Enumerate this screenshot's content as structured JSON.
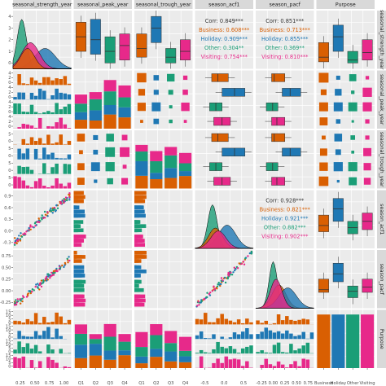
{
  "chart_data": {
    "type": "scatter_matrix",
    "variables": [
      "seasonal_strength_year",
      "seasonal_peak_year",
      "seasonal_trough_year",
      "season_acf1",
      "season_pacf",
      "Purpose"
    ],
    "groups": [
      "Business",
      "Holiday",
      "Other",
      "Visiting"
    ],
    "colors": {
      "Business": "#d95f02",
      "Holiday": "#1f78b4",
      "Other": "#1b9e77",
      "Visiting": "#e7298a"
    },
    "x_ticks": {
      "seasonal_strength_year": [
        "0.25",
        "0.50",
        "0.75",
        "1.00"
      ],
      "seasonal_peak_year": [
        "Q1",
        "Q2",
        "Q3",
        "Q4"
      ],
      "seasonal_trough_year": [
        "Q1",
        "Q2",
        "Q3",
        "Q4"
      ],
      "season_acf1": [
        "-0.5",
        "0.0",
        "0.5"
      ],
      "season_pacf": [
        "-0.25",
        "0.00",
        "0.25",
        "0.50",
        "0.75"
      ],
      "Purpose": [
        "Business",
        "Holiday",
        "Other",
        "Visiting"
      ]
    },
    "y_ticks": {
      "seasonal_strength_year": [
        "4",
        "3",
        "2",
        "1",
        "0"
      ],
      "seasonal_peak_year": [
        "4",
        "2",
        "0",
        "4",
        "2",
        "0",
        "4",
        "2",
        "0",
        "4",
        "2",
        "0"
      ],
      "seasonal_trough_year": [
        "5",
        "0",
        "5",
        "0",
        "5",
        "0",
        "5",
        "0"
      ],
      "season_acf1": [
        "0.9",
        "0.6",
        "0.3",
        "0.0",
        "-0.3"
      ],
      "season_pacf": [
        "0.75",
        "0.50",
        "0.25",
        "0.00",
        "-0.25"
      ],
      "Purpose": [
        "15",
        "10",
        "5",
        "0",
        "15",
        "10",
        "5",
        "0",
        "15",
        "10",
        "5",
        "0",
        "15",
        "10",
        "5",
        "0"
      ]
    },
    "correlations": [
      {
        "row": 0,
        "col": 3,
        "values": [
          {
            "label": "Corr: 0.849***",
            "group": "Corr"
          },
          {
            "label": "Business: 0.608***",
            "group": "Business"
          },
          {
            "label": "Holiday: 0.909***",
            "group": "Holiday"
          },
          {
            "label": "Other: 0.304**",
            "group": "Other"
          },
          {
            "label": "Visiting: 0.754***",
            "group": "Visiting"
          }
        ]
      },
      {
        "row": 0,
        "col": 4,
        "values": [
          {
            "label": "Corr: 0.851***",
            "group": "Corr"
          },
          {
            "label": "Business: 0.713***",
            "group": "Business"
          },
          {
            "label": "Holiday: 0.855***",
            "group": "Holiday"
          },
          {
            "label": "Other: 0.369**",
            "group": "Other"
          },
          {
            "label": "Visiting: 0.810***",
            "group": "Visiting"
          }
        ]
      },
      {
        "row": 3,
        "col": 4,
        "values": [
          {
            "label": "Corr: 0.928***",
            "group": "Corr"
          },
          {
            "label": "Business: 0.821***",
            "group": "Business"
          },
          {
            "label": "Holiday: 0.921***",
            "group": "Holiday"
          },
          {
            "label": "Other: 0.882***",
            "group": "Other"
          },
          {
            "label": "Visiting: 0.902***",
            "group": "Visiting"
          }
        ]
      }
    ],
    "strength_by_purpose": {
      "Business": [
        0.12,
        0.2,
        0.45
      ],
      "Holiday": [
        0.3,
        0.55,
        0.75
      ],
      "Other": [
        0.1,
        0.15,
        0.3
      ],
      "Visiting": [
        0.15,
        0.28,
        0.5
      ]
    },
    "acf_by_purpose": {
      "Business": [
        -0.1,
        0.05,
        0.3
      ],
      "Holiday": [
        0.15,
        0.45,
        0.7
      ],
      "Other": [
        -0.15,
        0.0,
        0.15
      ],
      "Visiting": [
        -0.05,
        0.15,
        0.35
      ]
    },
    "pacf_by_purpose": {
      "Business": [
        0.0,
        0.05,
        0.25
      ],
      "Holiday": [
        0.2,
        0.35,
        0.55
      ],
      "Other": [
        -0.1,
        0.02,
        0.12
      ],
      "Visiting": [
        0.0,
        0.1,
        0.25
      ]
    },
    "grid": true,
    "legend": "none"
  }
}
